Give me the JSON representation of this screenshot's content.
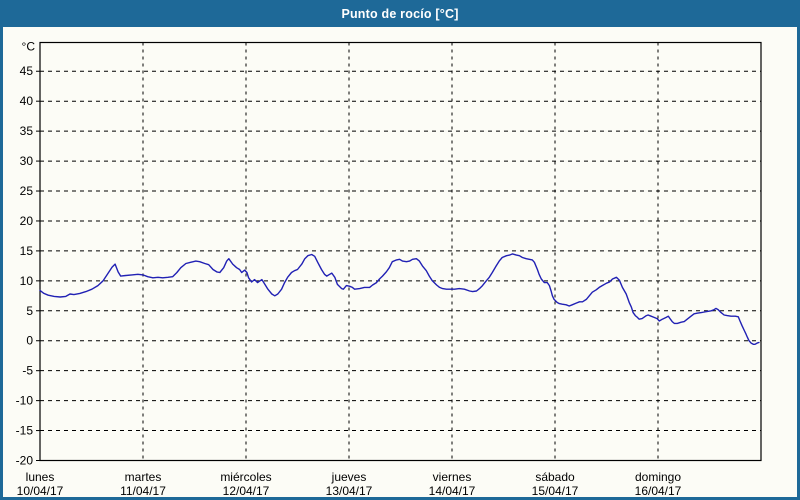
{
  "titlebar": {
    "title": "Punto de rocío [°C]"
  },
  "colors": {
    "frame": "#1e6998",
    "titlebar_bg": "#1e6998",
    "title_text": "#ffffff",
    "content_bg": "#fcfcf6",
    "axis": "#000000",
    "grid": "#000000",
    "label_text": "#000000",
    "line": "#2121b4"
  },
  "chart_data": {
    "type": "line",
    "title": "Punto de rocío [°C]",
    "ylabel": "°C",
    "xlabel": "",
    "legend_position": "none",
    "grid": {
      "horizontal": "dashed every 5°C",
      "vertical": "dashed at each day boundary"
    },
    "ylim": [
      -20,
      49.8
    ],
    "yticks": [
      45,
      40,
      35,
      30,
      25,
      20,
      15,
      10,
      5,
      0,
      -5,
      -10,
      -15,
      -20
    ],
    "x_unit": "hours since 10/04/17 00:00",
    "x_range_hours": [
      0,
      168
    ],
    "days": [
      {
        "name": "lunes",
        "date": "10/04/17"
      },
      {
        "name": "martes",
        "date": "11/04/17"
      },
      {
        "name": "miércoles",
        "date": "12/04/17"
      },
      {
        "name": "jueves",
        "date": "13/04/17"
      },
      {
        "name": "viernes",
        "date": "14/04/17"
      },
      {
        "name": "sábado",
        "date": "15/04/17"
      },
      {
        "name": "domingo",
        "date": "16/04/17"
      }
    ],
    "series": [
      {
        "name": "punto de rocío",
        "color": "#2121b4",
        "points": [
          [
            0,
            8.4
          ],
          [
            0.9,
            7.9
          ],
          [
            1.9,
            7.6
          ],
          [
            3.3,
            7.4
          ],
          [
            4.7,
            7.3
          ],
          [
            6,
            7.4
          ],
          [
            7,
            7.8
          ],
          [
            7.9,
            7.7
          ],
          [
            9.3,
            7.9
          ],
          [
            10.7,
            8.2
          ],
          [
            12.1,
            8.6
          ],
          [
            13.5,
            9.2
          ],
          [
            14.7,
            10
          ],
          [
            15.6,
            11
          ],
          [
            16.8,
            12.3
          ],
          [
            17.5,
            12.8
          ],
          [
            18.2,
            11.5
          ],
          [
            18.8,
            10.8
          ],
          [
            20,
            10.9
          ],
          [
            21.4,
            11
          ],
          [
            22.8,
            11.1
          ],
          [
            24,
            11
          ],
          [
            25.1,
            10.7
          ],
          [
            26.3,
            10.5
          ],
          [
            27.5,
            10.6
          ],
          [
            28.6,
            10.5
          ],
          [
            29.8,
            10.6
          ],
          [
            30.9,
            10.7
          ],
          [
            31.9,
            11.4
          ],
          [
            32.8,
            12.2
          ],
          [
            34,
            12.9
          ],
          [
            35.1,
            13.1
          ],
          [
            36.3,
            13.3
          ],
          [
            37.2,
            13.2
          ],
          [
            38.4,
            12.9
          ],
          [
            39.3,
            12.7
          ],
          [
            40.3,
            11.9
          ],
          [
            41.2,
            11.5
          ],
          [
            41.9,
            11.4
          ],
          [
            42.8,
            12.2
          ],
          [
            43.5,
            13.3
          ],
          [
            44,
            13.7
          ],
          [
            44.9,
            12.8
          ],
          [
            45.8,
            12.2
          ],
          [
            46.5,
            11.9
          ],
          [
            47,
            11.4
          ],
          [
            47.7,
            11.8
          ],
          [
            48.2,
            11.4
          ],
          [
            48.6,
            10.5
          ],
          [
            49.3,
            9.8
          ],
          [
            50,
            10.2
          ],
          [
            50.7,
            9.7
          ],
          [
            51.7,
            10.2
          ],
          [
            52.4,
            9.4
          ],
          [
            53.1,
            8.6
          ],
          [
            54,
            7.8
          ],
          [
            54.7,
            7.5
          ],
          [
            55.4,
            7.8
          ],
          [
            56.3,
            8.6
          ],
          [
            57,
            9.7
          ],
          [
            57.7,
            10.6
          ],
          [
            58.6,
            11.4
          ],
          [
            59.3,
            11.7
          ],
          [
            60,
            11.9
          ],
          [
            61,
            12.8
          ],
          [
            61.7,
            13.7
          ],
          [
            62.4,
            14.2
          ],
          [
            63.3,
            14.4
          ],
          [
            64,
            14.1
          ],
          [
            64.7,
            13.1
          ],
          [
            65.6,
            11.9
          ],
          [
            66.3,
            11.1
          ],
          [
            66.8,
            10.8
          ],
          [
            67.5,
            11.1
          ],
          [
            68,
            11.3
          ],
          [
            68.7,
            10.6
          ],
          [
            69.3,
            9.4
          ],
          [
            70.3,
            8.7
          ],
          [
            70.7,
            8.6
          ],
          [
            71.4,
            9.2
          ],
          [
            72.1,
            9.1
          ],
          [
            72.8,
            8.9
          ],
          [
            73.3,
            8.6
          ],
          [
            74.5,
            8.7
          ],
          [
            75.6,
            8.9
          ],
          [
            76.8,
            8.9
          ],
          [
            77.5,
            9.3
          ],
          [
            78.4,
            9.7
          ],
          [
            79.1,
            10.3
          ],
          [
            79.8,
            10.8
          ],
          [
            80.7,
            11.5
          ],
          [
            81.4,
            12.2
          ],
          [
            82.1,
            13.2
          ],
          [
            83.1,
            13.5
          ],
          [
            83.8,
            13.6
          ],
          [
            84.5,
            13.3
          ],
          [
            85.4,
            13.2
          ],
          [
            86.1,
            13.3
          ],
          [
            86.8,
            13.6
          ],
          [
            87.7,
            13.7
          ],
          [
            88.4,
            13.3
          ],
          [
            89.1,
            12.5
          ],
          [
            90,
            11.7
          ],
          [
            90.7,
            10.8
          ],
          [
            91.4,
            10
          ],
          [
            92.4,
            9.3
          ],
          [
            93.1,
            8.9
          ],
          [
            93.8,
            8.7
          ],
          [
            94.7,
            8.6
          ],
          [
            95.4,
            8.6
          ],
          [
            96.6,
            8.6
          ],
          [
            97.7,
            8.7
          ],
          [
            98.9,
            8.6
          ],
          [
            100.1,
            8.3
          ],
          [
            100.8,
            8.2
          ],
          [
            101.7,
            8.3
          ],
          [
            102.4,
            8.7
          ],
          [
            103.1,
            9.2
          ],
          [
            104,
            10
          ],
          [
            104.7,
            10.6
          ],
          [
            105.4,
            11.4
          ],
          [
            106.3,
            12.5
          ],
          [
            107,
            13.3
          ],
          [
            107.7,
            13.9
          ],
          [
            108.7,
            14.2
          ],
          [
            109.4,
            14.3
          ],
          [
            110.1,
            14.5
          ],
          [
            111,
            14.3
          ],
          [
            111.7,
            14.2
          ],
          [
            112.4,
            13.9
          ],
          [
            113.3,
            13.7
          ],
          [
            114,
            13.6
          ],
          [
            114.7,
            13.5
          ],
          [
            115.2,
            13.1
          ],
          [
            115.9,
            11.9
          ],
          [
            116.3,
            11.1
          ],
          [
            116.8,
            10.3
          ],
          [
            117.5,
            9.7
          ],
          [
            118.2,
            9.7
          ],
          [
            118.7,
            9.2
          ],
          [
            119.1,
            8.3
          ],
          [
            119.4,
            7.5
          ],
          [
            119.8,
            6.9
          ],
          [
            120.5,
            6.4
          ],
          [
            121,
            6.2
          ],
          [
            121.7,
            6.1
          ],
          [
            122.6,
            6
          ],
          [
            123.3,
            5.8
          ],
          [
            124,
            6
          ],
          [
            125,
            6.3
          ],
          [
            125.7,
            6.5
          ],
          [
            126.4,
            6.5
          ],
          [
            127.3,
            6.9
          ],
          [
            128,
            7.5
          ],
          [
            128.7,
            8.1
          ],
          [
            129.6,
            8.5
          ],
          [
            130.3,
            8.9
          ],
          [
            131,
            9.2
          ],
          [
            132,
            9.6
          ],
          [
            132.7,
            9.8
          ],
          [
            133.4,
            10.3
          ],
          [
            134.3,
            10.6
          ],
          [
            135,
            10.1
          ],
          [
            135.7,
            8.9
          ],
          [
            136.6,
            7.8
          ],
          [
            137.3,
            6.4
          ],
          [
            137.8,
            5.6
          ],
          [
            138.2,
            4.7
          ],
          [
            138.7,
            4.2
          ],
          [
            139.2,
            3.9
          ],
          [
            139.6,
            3.6
          ],
          [
            140.3,
            3.7
          ],
          [
            141.3,
            4.2
          ],
          [
            141.7,
            4.3
          ],
          [
            142.4,
            4.1
          ],
          [
            143.1,
            3.9
          ],
          [
            143.8,
            3.7
          ],
          [
            144.3,
            3.3
          ],
          [
            145,
            3.6
          ],
          [
            145.9,
            3.9
          ],
          [
            146.4,
            4.1
          ],
          [
            146.8,
            3.7
          ],
          [
            147.3,
            3.2
          ],
          [
            147.8,
            2.9
          ],
          [
            148.5,
            2.9
          ],
          [
            149.4,
            3.1
          ],
          [
            150.1,
            3.2
          ],
          [
            150.8,
            3.6
          ],
          [
            151.7,
            4.1
          ],
          [
            152.4,
            4.5
          ],
          [
            153.1,
            4.6
          ],
          [
            154.1,
            4.7
          ],
          [
            154.8,
            4.8
          ],
          [
            155.5,
            4.9
          ],
          [
            156.4,
            5
          ],
          [
            157.1,
            5.2
          ],
          [
            157.5,
            5.4
          ],
          [
            158,
            5.2
          ],
          [
            158.7,
            4.7
          ],
          [
            159.4,
            4.3
          ],
          [
            160.1,
            4.2
          ],
          [
            161,
            4.1
          ],
          [
            162,
            4.1
          ],
          [
            162.7,
            4
          ],
          [
            163.1,
            3.3
          ],
          [
            163.6,
            2.5
          ],
          [
            164.1,
            1.7
          ],
          [
            164.5,
            1.1
          ],
          [
            164.8,
            0.6
          ],
          [
            165.2,
            0
          ],
          [
            165.7,
            -0.4
          ],
          [
            166.2,
            -0.6
          ],
          [
            166.6,
            -0.6
          ],
          [
            167.1,
            -0.4
          ],
          [
            167.5,
            -0.3
          ]
        ]
      }
    ]
  }
}
